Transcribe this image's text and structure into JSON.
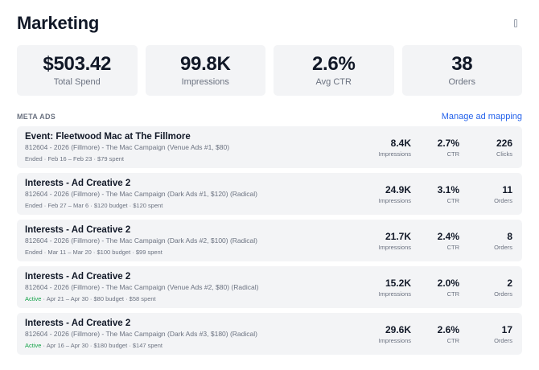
{
  "header": {
    "title": "Marketing",
    "menu_icon": "more-menu-icon"
  },
  "stats": [
    {
      "value": "$503.42",
      "label": "Total Spend"
    },
    {
      "value": "99.8K",
      "label": "Impressions"
    },
    {
      "value": "2.6%",
      "label": "Avg CTR"
    },
    {
      "value": "38",
      "label": "Orders"
    }
  ],
  "section": {
    "title": "META ADS",
    "manage_link": "Manage ad mapping"
  },
  "ads": [
    {
      "name": "Event: Fleetwood Mac at The Fillmore",
      "campaign": "812604 - 2026 (Fillmore) - The Mac Campaign (Venue Ads #1, $80)",
      "status": "Ended",
      "details": " · Feb 16 – Feb 23 · $79 spent",
      "impressions": "8.4K",
      "impressions_label": "Impressions",
      "ctr": "2.7%",
      "ctr_label": "CTR",
      "third": "226",
      "third_label": "Clicks"
    },
    {
      "name": "Interests - Ad Creative 2",
      "campaign": "812604 - 2026 (Fillmore) - The Mac Campaign (Dark Ads #1, $120) (Radical)",
      "status": "Ended",
      "details": " · Feb 27 – Mar 6 · $120 budget · $120 spent",
      "impressions": "24.9K",
      "impressions_label": "Impressions",
      "ctr": "3.1%",
      "ctr_label": "CTR",
      "third": "11",
      "third_label": "Orders"
    },
    {
      "name": "Interests - Ad Creative 2",
      "campaign": "812604 - 2026 (Fillmore) - The Mac Campaign (Dark Ads #2, $100) (Radical)",
      "status": "Ended",
      "details": " · Mar 11 – Mar 20 · $100 budget · $99 spent",
      "impressions": "21.7K",
      "impressions_label": "Impressions",
      "ctr": "2.4%",
      "ctr_label": "CTR",
      "third": "8",
      "third_label": "Orders"
    },
    {
      "name": "Interests - Ad Creative 2",
      "campaign": "812604 - 2026 (Fillmore) - The Mac Campaign (Venue Ads #2, $80) (Radical)",
      "status": "Active",
      "details": " · Apr 21 – Apr 30 · $80 budget · $58 spent",
      "impressions": "15.2K",
      "impressions_label": "Impressions",
      "ctr": "2.0%",
      "ctr_label": "CTR",
      "third": "2",
      "third_label": "Orders"
    },
    {
      "name": "Interests - Ad Creative 2",
      "campaign": "812604 - 2026 (Fillmore) - The Mac Campaign (Dark Ads #3, $180) (Radical)",
      "status": "Active",
      "details": " · Apr 16 – Apr 30 · $180 budget · $147 spent",
      "impressions": "29.6K",
      "impressions_label": "Impressions",
      "ctr": "2.6%",
      "ctr_label": "CTR",
      "third": "17",
      "third_label": "Orders"
    }
  ],
  "colors": {
    "accent": "#2563eb",
    "active": "#16a34a",
    "muted": "#6b7280",
    "card_bg": "#f3f4f6",
    "text": "#111827"
  }
}
